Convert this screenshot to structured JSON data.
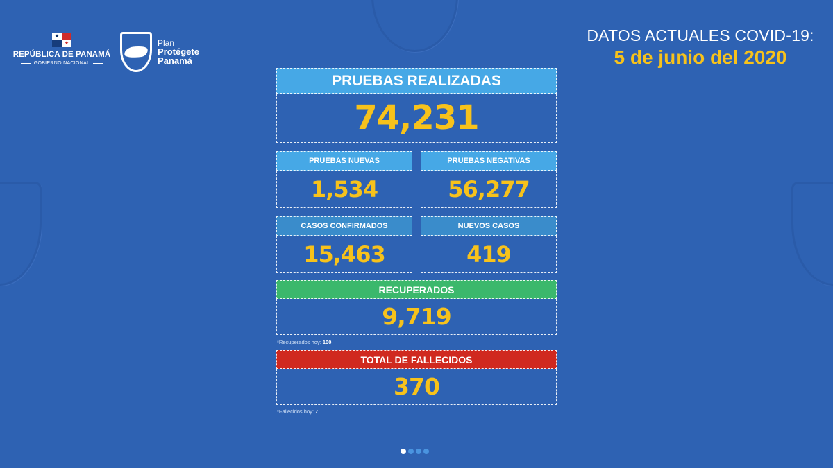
{
  "header": {
    "gov_title": "REPÚBLICA DE PANAMÁ",
    "gov_subtitle": "GOBIERNO NACIONAL",
    "plan_line1": "Plan",
    "plan_line2": "Protégete",
    "plan_line3": "Panamá",
    "datos_title": "DATOS ACTUALES COVID-19:",
    "date": "5 de junio del 2020"
  },
  "flag": {
    "star_blue": "★",
    "star_red": "★"
  },
  "cards": {
    "pruebas_realizadas": {
      "label": "PRUEBAS REALIZADAS",
      "value": "74,231"
    },
    "pruebas_nuevas": {
      "label": "PRUEBAS NUEVAS",
      "value": "1,534"
    },
    "pruebas_negativas": {
      "label": "PRUEBAS NEGATIVAS",
      "value": "56,277"
    },
    "casos_confirmados": {
      "label": "CASOS CONFIRMADOS",
      "value": "15,463"
    },
    "nuevos_casos": {
      "label": "NUEVOS CASOS",
      "value": "419"
    },
    "recuperados": {
      "label": "RECUPERADOS",
      "value": "9,719"
    },
    "fallecidos": {
      "label": "TOTAL DE FALLECIDOS",
      "value": "370"
    }
  },
  "notes": {
    "recuperados_label": "*Recuperados hoy: ",
    "recuperados_value": "100",
    "fallecidos_label": "*Fallecidos hoy: ",
    "fallecidos_value": "7"
  },
  "colors": {
    "background": "#2e62b3",
    "accent_yellow": "#f7c21b",
    "header_light_blue": "#46a8e6",
    "header_mid_blue": "#3a8ccb",
    "header_green": "#3bb86c",
    "header_red": "#d0291f"
  },
  "pager": {
    "total": 4,
    "active": 0
  }
}
